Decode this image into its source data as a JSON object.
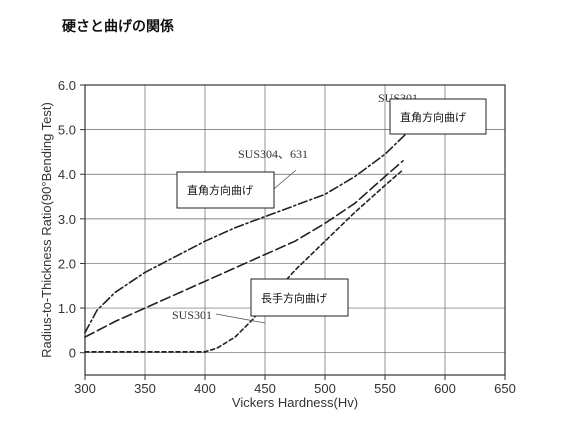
{
  "page": {
    "title": "硬さと曲げの関係"
  },
  "chart_data": {
    "type": "line",
    "xlabel": "Vickers Hardness(Hv)",
    "ylabel": "Radius-to-Thickness Ratio(90°Bending Test)",
    "xlim": [
      300,
      650
    ],
    "ylim": [
      -0.5,
      6.0
    ],
    "x_ticks": [
      "300",
      "350",
      "400",
      "450",
      "500",
      "550",
      "600",
      "650"
    ],
    "y_ticks": [
      "0",
      "1.0",
      "2.0",
      "3.0",
      "4.0",
      "5.0",
      "6.0"
    ],
    "grid": true,
    "series": [
      {
        "name": "SUS301 直角方向曲げ",
        "style": "dash-dot",
        "points": [
          [
            300,
            0.45
          ],
          [
            310,
            0.95
          ],
          [
            325,
            1.35
          ],
          [
            350,
            1.8
          ],
          [
            375,
            2.15
          ],
          [
            400,
            2.5
          ],
          [
            425,
            2.8
          ],
          [
            450,
            3.05
          ],
          [
            475,
            3.3
          ],
          [
            500,
            3.55
          ],
          [
            525,
            3.95
          ],
          [
            550,
            4.45
          ],
          [
            575,
            5.1
          ],
          [
            582,
            5.3
          ]
        ]
      },
      {
        "name": "SUS304, 631 直角方向曲げ",
        "style": "dash-long",
        "points": [
          [
            300,
            0.35
          ],
          [
            325,
            0.7
          ],
          [
            350,
            1.0
          ],
          [
            375,
            1.3
          ],
          [
            400,
            1.6
          ],
          [
            425,
            1.9
          ],
          [
            450,
            2.2
          ],
          [
            475,
            2.5
          ],
          [
            500,
            2.9
          ],
          [
            525,
            3.35
          ],
          [
            550,
            3.95
          ],
          [
            565,
            4.3
          ]
        ]
      },
      {
        "name": "SUS301 長手方向曲げ",
        "style": "dotted",
        "points": [
          [
            300,
            0.02
          ],
          [
            350,
            0.02
          ],
          [
            400,
            0.02
          ],
          [
            410,
            0.1
          ],
          [
            425,
            0.35
          ],
          [
            440,
            0.75
          ],
          [
            450,
            1.1
          ],
          [
            475,
            1.85
          ],
          [
            500,
            2.5
          ],
          [
            525,
            3.15
          ],
          [
            550,
            3.75
          ],
          [
            565,
            4.1
          ]
        ]
      }
    ],
    "annotations": [
      {
        "id": "sus301-top",
        "text": "SUS301"
      },
      {
        "id": "sus304",
        "text": "SUS304、631"
      },
      {
        "id": "sus301-bottom",
        "text": "SUS301"
      }
    ],
    "boxed_labels": [
      {
        "id": "box-right",
        "text": "直角方向曲げ"
      },
      {
        "id": "box-left",
        "text": "直角方向曲げ"
      },
      {
        "id": "box-bottom",
        "text": "長手方向曲げ"
      }
    ]
  }
}
